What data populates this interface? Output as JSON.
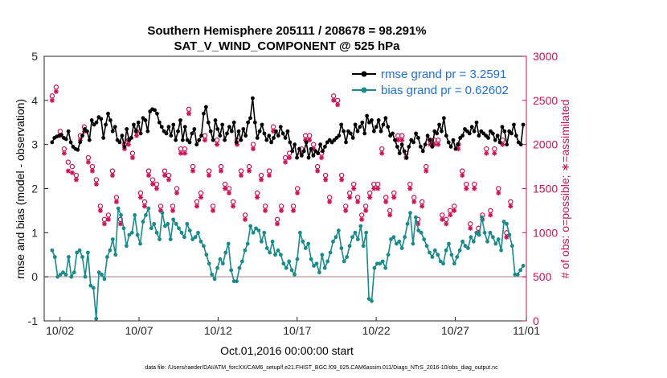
{
  "chart_data": {
    "type": "line",
    "title_line1": "Southern Hemisphere 205111 / 208678 = 98.291%",
    "title_line2": "SAT_V_WIND_COMPONENT @ 525 hPa",
    "xlabel": "Oct.01,2016 00:00:00 start",
    "ylabel_left": "rmse and bias (model - observation)",
    "ylabel_right": "# of obs: o=possible; ∗=assimilated",
    "xlim": [
      0.5,
      31
    ],
    "ylim_left": [
      -1,
      5
    ],
    "ylim_right": [
      0,
      3000
    ],
    "x_ticks": [
      {
        "value": 1.5,
        "label": "10/02"
      },
      {
        "value": 6.5,
        "label": "10/07"
      },
      {
        "value": 11.5,
        "label": "10/12"
      },
      {
        "value": 16.5,
        "label": "10/17"
      },
      {
        "value": 21.5,
        "label": "10/22"
      },
      {
        "value": 26.5,
        "label": "10/27"
      },
      {
        "value": 31.0,
        "label": "11/01"
      }
    ],
    "y_ticks_left": [
      -1,
      0,
      1,
      2,
      3,
      4,
      5
    ],
    "y_ticks_right": [
      0,
      500,
      1000,
      1500,
      2000,
      2500,
      3000
    ],
    "zero_line": 0,
    "legend": [
      {
        "label": "rmse grand pr = 3.2591",
        "color": "#000000"
      },
      {
        "label": "bias grand pr = 0.62602",
        "color": "#1a8a8a"
      }
    ],
    "series": [
      {
        "key": "rmse",
        "color": "#000000",
        "values": [
          3.05,
          3.15,
          3.18,
          3.2,
          3.22,
          3.15,
          3.12,
          3.3,
          3.05,
          2.95,
          2.9,
          2.88,
          3.05,
          3.2,
          3.35,
          3.3,
          3.1,
          3.55,
          3.45,
          3.5,
          3.62,
          3.58,
          3.15,
          3.45,
          3.7,
          3.55,
          3.3,
          3.4,
          3.1,
          3.05,
          3.2,
          2.95,
          3.35,
          3.1,
          3.15,
          3.45,
          3.3,
          3.5,
          3.25,
          3.6,
          3.55,
          3.3,
          3.75,
          3.8,
          3.78,
          3.7,
          3.5,
          3.4,
          3.3,
          3.25,
          3.4,
          3.2,
          3.45,
          3.1,
          3.3,
          3.55,
          3.1,
          3.4,
          3.1,
          3.05,
          3.25,
          3.35,
          3.0,
          3.1,
          3.2,
          3.7,
          3.85,
          3.5,
          3.3,
          3.1,
          3.55,
          3.35,
          3.2,
          3.45,
          3.1,
          3.25,
          3.4,
          3.3,
          3.5,
          3.05,
          3.3,
          3.1,
          3.35,
          3.2,
          3.5,
          3.6,
          4.05,
          3.5,
          3.15,
          3.3,
          3.45,
          3.25,
          3.1,
          3.2,
          3.05,
          3.15,
          3.3,
          3.2,
          3.4,
          3.25,
          3.15,
          3.3,
          3.05,
          2.85,
          3.0,
          2.7,
          2.9,
          2.75,
          2.85,
          3.05,
          2.7,
          2.9,
          2.75,
          2.85,
          2.8,
          3.0,
          2.85,
          2.95,
          3.05,
          3.1,
          3.05,
          3.1,
          3.15,
          3.2,
          3.45,
          3.3,
          3.05,
          3.3,
          3.25,
          3.15,
          3.45,
          3.3,
          3.4,
          3.5,
          3.25,
          3.65,
          3.5,
          3.55,
          3.3,
          3.4,
          3.55,
          3.3,
          3.45,
          3.6,
          3.4,
          3.2,
          3.25,
          3.1,
          2.95,
          2.8,
          3.0,
          2.85,
          2.7,
          2.95,
          3.1,
          3.05,
          3.25,
          3.15,
          2.95,
          2.85,
          3.0,
          3.2,
          3.1,
          2.95,
          3.3,
          3.25,
          3.45,
          3.3,
          3.6,
          3.2,
          3.05,
          2.95,
          3.1,
          2.9,
          3.0,
          3.15,
          3.2,
          3.35,
          3.3,
          3.25,
          3.4,
          3.3,
          3.5,
          3.2,
          3.3,
          3.25,
          3.2,
          3.15,
          3.3,
          3.25,
          3.1,
          3.2,
          3.05,
          3.4,
          3.3,
          3.0,
          3.3,
          3.25,
          3.45,
          3.2,
          3.05,
          3.0,
          3.45
        ]
      },
      {
        "key": "bias",
        "color": "#1a8a8a",
        "values": [
          0.6,
          0.45,
          0.0,
          0.05,
          0.1,
          0.05,
          0.45,
          0.0,
          0.1,
          0.55,
          0.6,
          0.45,
          0.0,
          0.55,
          -0.2,
          -0.25,
          -0.95,
          0.1,
          0.05,
          -0.05,
          0.45,
          0.6,
          0.85,
          0.5,
          1.55,
          1.4,
          1.1,
          0.7,
          0.95,
          1.0,
          1.4,
          0.95,
          0.75,
          1.25,
          1.4,
          1.55,
          1.1,
          1.2,
          1.0,
          0.85,
          1.45,
          1.15,
          1.2,
          0.85,
          1.3,
          1.2,
          1.1,
          1.0,
          0.9,
          1.2,
          1.05,
          0.85,
          0.9,
          1.0,
          0.8,
          0.7,
          0.5,
          0.3,
          0.05,
          -0.05,
          0.2,
          0.4,
          0.3,
          0.55,
          0.75,
          0.15,
          -0.1,
          -0.1,
          0.2,
          0.35,
          0.6,
          0.75,
          1.15,
          1.0,
          1.1,
          1.05,
          0.8,
          1.0,
          0.65,
          0.55,
          0.8,
          0.5,
          0.6,
          0.5,
          0.3,
          0.2,
          0.35,
          0.15,
          0.05,
          0.4,
          1.0,
          0.8,
          0.65,
          0.75,
          0.4,
          0.25,
          0.3,
          0.1,
          0.5,
          0.2,
          0.35,
          0.55,
          0.8,
          0.9,
          1.05,
          0.65,
          0.35,
          0.45,
          0.7,
          0.9,
          1.0,
          0.85,
          1.15,
          0.7,
          1.0,
          -0.5,
          -0.55,
          0.2,
          0.3,
          0.3,
          0.35,
          0.2,
          0.5,
          0.85,
          0.9,
          0.75,
          0.8,
          0.65,
          0.9,
          1.2,
          1.45,
          0.75,
          1.35,
          1.05,
          1.0,
          0.85,
          0.7,
          0.55,
          0.45,
          0.6,
          0.5,
          0.35,
          0.3,
          0.6,
          0.75,
          0.5,
          0.3,
          0.45,
          0.6,
          0.8,
          0.7,
          0.65,
          0.9,
          0.8,
          1.0,
          0.95,
          1.35,
          1.0,
          0.8,
          1.0,
          0.9,
          0.75,
          0.85,
          0.6,
          1.25,
          1.2,
          0.95,
          0.7,
          0.05,
          0.05,
          0.15,
          0.25
        ]
      }
    ],
    "obs_possible": [
      2550,
      2650,
      2150,
      1950,
      1800,
      1750,
      1650,
      2100,
      2200,
      1850,
      1750,
      1600,
      1300,
      1150,
      1200,
      1700,
      1400,
      1150,
      2000,
      2050,
      1900,
      2150,
      1450,
      1350,
      1700,
      1600,
      1550,
      1300,
      1700,
      1650,
      1300,
      1500,
      1950,
      1950,
      2400,
      1750,
      1350,
      1450,
      2100,
      1700,
      1300,
      2050,
      1750,
      1550,
      1500,
      1350,
      2050,
      1700,
      1200,
      1750,
      2000,
      1450,
      1650,
      1300,
      1700,
      2200,
      1150,
      1300,
      1850,
      1900,
      1300,
      1500,
      1950,
      2100,
      2100,
      2000,
      1750,
      1900,
      1650,
      1400,
      2550,
      2500,
      1650,
      1300,
      1450,
      1550,
      1400,
      1200,
      1300,
      1450,
      1550,
      1550,
      1950,
      1400,
      1250,
      1450,
      2100,
      2100,
      1900,
      1550,
      1400,
      1150,
      1350,
      1750,
      2050,
      2050,
      2050,
      1200,
      1150,
      1250,
      1300,
      2000,
      1700,
      1550,
      1100,
      1550,
      1050,
      1200,
      1950,
      1250,
      1950,
      1500,
      2050,
      1000,
      1350
    ],
    "obs_assimilated": [
      2500,
      2600,
      2100,
      1900,
      1700,
      1680,
      1600,
      2050,
      2150,
      1800,
      1700,
      1550,
      1250,
      1100,
      1150,
      1650,
      1350,
      1100,
      1950,
      2000,
      1850,
      2100,
      1400,
      1300,
      1650,
      1550,
      1500,
      1250,
      1650,
      1600,
      1250,
      1450,
      1900,
      1900,
      2350,
      1700,
      1300,
      1400,
      2050,
      1650,
      1250,
      2000,
      1700,
      1500,
      1450,
      1300,
      2000,
      1650,
      1150,
      1700,
      1950,
      1400,
      1600,
      1250,
      1650,
      2150,
      1100,
      1250,
      1800,
      1850,
      1250,
      1450,
      1900,
      2050,
      2050,
      1950,
      1700,
      1850,
      1600,
      1350,
      2500,
      2450,
      1600,
      1250,
      1400,
      1500,
      1350,
      1150,
      1250,
      1400,
      1500,
      1500,
      1900,
      1350,
      1200,
      1400,
      2050,
      2050,
      1850,
      1500,
      1350,
      1100,
      1300,
      1700,
      2000,
      2000,
      2000,
      1150,
      1100,
      1200,
      1250,
      1950,
      1650,
      1500,
      1050,
      1500,
      1000,
      1150,
      1900,
      1200,
      1900,
      1450,
      2000,
      950,
      1300
    ],
    "footer": "data file: /Users/raeder/DAI/ATM_forcXX/CAM6_setup/f.e21.FHIST_BGC.f09_025.CAM6assim.011/Diags_NTrS_2016-10/obs_diag_output.nc",
    "colors": {
      "rmse": "#000000",
      "bias": "#1a8a8a",
      "obs": "#cc1155",
      "zero": "#c8a8a8",
      "legend_text": "#1f6fd8"
    }
  }
}
